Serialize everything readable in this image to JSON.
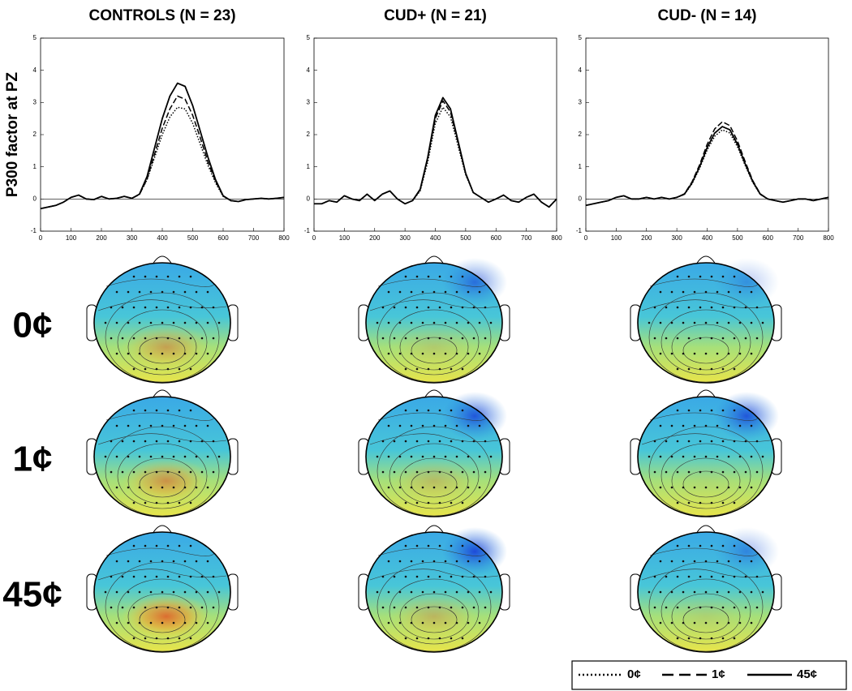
{
  "chart_data": [
    {
      "type": "line",
      "title": "CONTROLS (N = 23)",
      "ylabel": "P300 factor at PZ",
      "x": [
        0,
        25,
        50,
        75,
        100,
        125,
        150,
        175,
        200,
        225,
        250,
        275,
        300,
        325,
        350,
        375,
        400,
        425,
        450,
        475,
        500,
        525,
        550,
        575,
        600,
        625,
        650,
        675,
        700,
        725,
        750,
        775,
        800
      ],
      "series": [
        {
          "name": "0¢",
          "dash": "dotted",
          "color": "#000",
          "values": [
            -0.3,
            -0.25,
            -0.2,
            -0.1,
            0.05,
            0.12,
            0.0,
            -0.02,
            0.08,
            0.0,
            0.02,
            0.08,
            0.02,
            0.14,
            0.6,
            1.3,
            2.0,
            2.55,
            2.85,
            2.8,
            2.35,
            1.7,
            1.05,
            0.5,
            0.08,
            -0.05,
            -0.08,
            -0.02,
            0.0,
            0.02,
            0.0,
            0.02,
            0.05
          ]
        },
        {
          "name": "1¢",
          "dash": "dashed",
          "color": "#000",
          "values": [
            -0.3,
            -0.25,
            -0.2,
            -0.1,
            0.05,
            0.12,
            0.0,
            -0.02,
            0.08,
            0.0,
            0.02,
            0.08,
            0.02,
            0.14,
            0.62,
            1.4,
            2.2,
            2.8,
            3.2,
            3.1,
            2.6,
            1.9,
            1.15,
            0.55,
            0.09,
            -0.05,
            -0.08,
            -0.02,
            0.0,
            0.02,
            0.0,
            0.02,
            0.05
          ]
        },
        {
          "name": "45¢",
          "dash": "solid",
          "color": "#000",
          "values": [
            -0.3,
            -0.25,
            -0.2,
            -0.1,
            0.05,
            0.12,
            0.0,
            -0.02,
            0.08,
            0.0,
            0.02,
            0.08,
            0.02,
            0.15,
            0.7,
            1.6,
            2.5,
            3.2,
            3.6,
            3.5,
            2.9,
            2.1,
            1.3,
            0.6,
            0.1,
            -0.05,
            -0.08,
            -0.02,
            0.0,
            0.02,
            0.0,
            0.02,
            0.05
          ]
        }
      ],
      "xlim": [
        0,
        800
      ],
      "xticks": [
        0,
        100,
        200,
        300,
        400,
        500,
        600,
        700,
        800
      ],
      "ylim": [
        -1,
        5
      ],
      "yticks": [
        -1,
        0,
        1,
        2,
        3,
        4,
        5
      ]
    },
    {
      "type": "line",
      "title": "CUD+ (N = 21)",
      "x": [
        0,
        25,
        50,
        75,
        100,
        125,
        150,
        175,
        200,
        225,
        250,
        275,
        300,
        325,
        350,
        375,
        400,
        425,
        450,
        475,
        500,
        525,
        550,
        575,
        600,
        625,
        650,
        675,
        700,
        725,
        750,
        775,
        800
      ],
      "series": [
        {
          "dash": "dotted",
          "color": "#000",
          "values": [
            -0.15,
            -0.15,
            -0.05,
            -0.1,
            0.1,
            0.0,
            -0.05,
            0.15,
            -0.05,
            0.15,
            0.25,
            0.0,
            -0.15,
            -0.05,
            0.25,
            1.15,
            2.35,
            2.85,
            2.55,
            1.65,
            0.75,
            0.2,
            0.05,
            -0.1,
            0.0,
            0.12,
            -0.05,
            -0.1,
            0.05,
            0.15,
            -0.1,
            -0.25,
            0.0
          ]
        },
        {
          "dash": "dashed",
          "color": "#000",
          "values": [
            -0.15,
            -0.15,
            -0.05,
            -0.1,
            0.1,
            0.0,
            -0.05,
            0.15,
            -0.05,
            0.15,
            0.25,
            0.0,
            -0.15,
            -0.05,
            0.28,
            1.25,
            2.5,
            3.05,
            2.7,
            1.75,
            0.78,
            0.2,
            0.05,
            -0.1,
            0.0,
            0.12,
            -0.05,
            -0.1,
            0.05,
            0.15,
            -0.1,
            -0.25,
            0.0
          ]
        },
        {
          "dash": "solid",
          "color": "#000",
          "values": [
            -0.15,
            -0.15,
            -0.05,
            -0.1,
            0.1,
            0.0,
            -0.05,
            0.15,
            -0.05,
            0.15,
            0.25,
            0.0,
            -0.15,
            -0.05,
            0.3,
            1.3,
            2.6,
            3.15,
            2.8,
            1.8,
            0.8,
            0.2,
            0.05,
            -0.1,
            0.0,
            0.12,
            -0.05,
            -0.1,
            0.05,
            0.15,
            -0.1,
            -0.25,
            0.0
          ]
        }
      ],
      "xlim": [
        0,
        800
      ],
      "xticks": [
        0,
        100,
        200,
        300,
        400,
        500,
        600,
        700,
        800
      ],
      "ylim": [
        -1,
        5
      ],
      "yticks": [
        -1,
        0,
        1,
        2,
        3,
        4,
        5
      ]
    },
    {
      "type": "line",
      "title": "CUD- (N = 14)",
      "x": [
        0,
        25,
        50,
        75,
        100,
        125,
        150,
        175,
        200,
        225,
        250,
        275,
        300,
        325,
        350,
        375,
        400,
        425,
        450,
        475,
        500,
        525,
        550,
        575,
        600,
        625,
        650,
        675,
        700,
        725,
        750,
        775,
        800
      ],
      "series": [
        {
          "dash": "dotted",
          "color": "#000",
          "values": [
            -0.2,
            -0.15,
            -0.1,
            -0.05,
            0.05,
            0.1,
            0.0,
            0.0,
            0.05,
            0.0,
            0.05,
            0.0,
            0.05,
            0.14,
            0.47,
            0.95,
            1.52,
            1.95,
            2.15,
            2.05,
            1.62,
            1.05,
            0.52,
            0.14,
            0.0,
            -0.05,
            -0.1,
            -0.05,
            0.0,
            0.0,
            -0.05,
            0.0,
            0.05
          ]
        },
        {
          "dash": "dashed",
          "color": "#000",
          "values": [
            -0.2,
            -0.15,
            -0.1,
            -0.05,
            0.05,
            0.1,
            0.0,
            0.0,
            0.05,
            0.0,
            0.05,
            0.0,
            0.05,
            0.16,
            0.53,
            1.06,
            1.7,
            2.18,
            2.4,
            2.28,
            1.8,
            1.17,
            0.58,
            0.16,
            0.0,
            -0.05,
            -0.1,
            -0.05,
            0.0,
            0.0,
            -0.05,
            0.0,
            0.05
          ]
        },
        {
          "dash": "solid",
          "color": "#000",
          "values": [
            -0.2,
            -0.15,
            -0.1,
            -0.05,
            0.05,
            0.1,
            0.0,
            0.0,
            0.05,
            0.0,
            0.05,
            0.0,
            0.05,
            0.15,
            0.5,
            1.0,
            1.6,
            2.05,
            2.25,
            2.15,
            1.7,
            1.1,
            0.55,
            0.15,
            0.0,
            -0.05,
            -0.1,
            -0.05,
            0.0,
            0.0,
            -0.05,
            0.0,
            0.05
          ]
        }
      ],
      "xlim": [
        0,
        800
      ],
      "xticks": [
        0,
        100,
        200,
        300,
        400,
        500,
        600,
        700,
        800
      ],
      "ylim": [
        -1,
        5
      ],
      "yticks": [
        -1,
        0,
        1,
        2,
        3,
        4,
        5
      ]
    }
  ],
  "row_labels": [
    "0¢",
    "1¢",
    "45¢"
  ]
}
